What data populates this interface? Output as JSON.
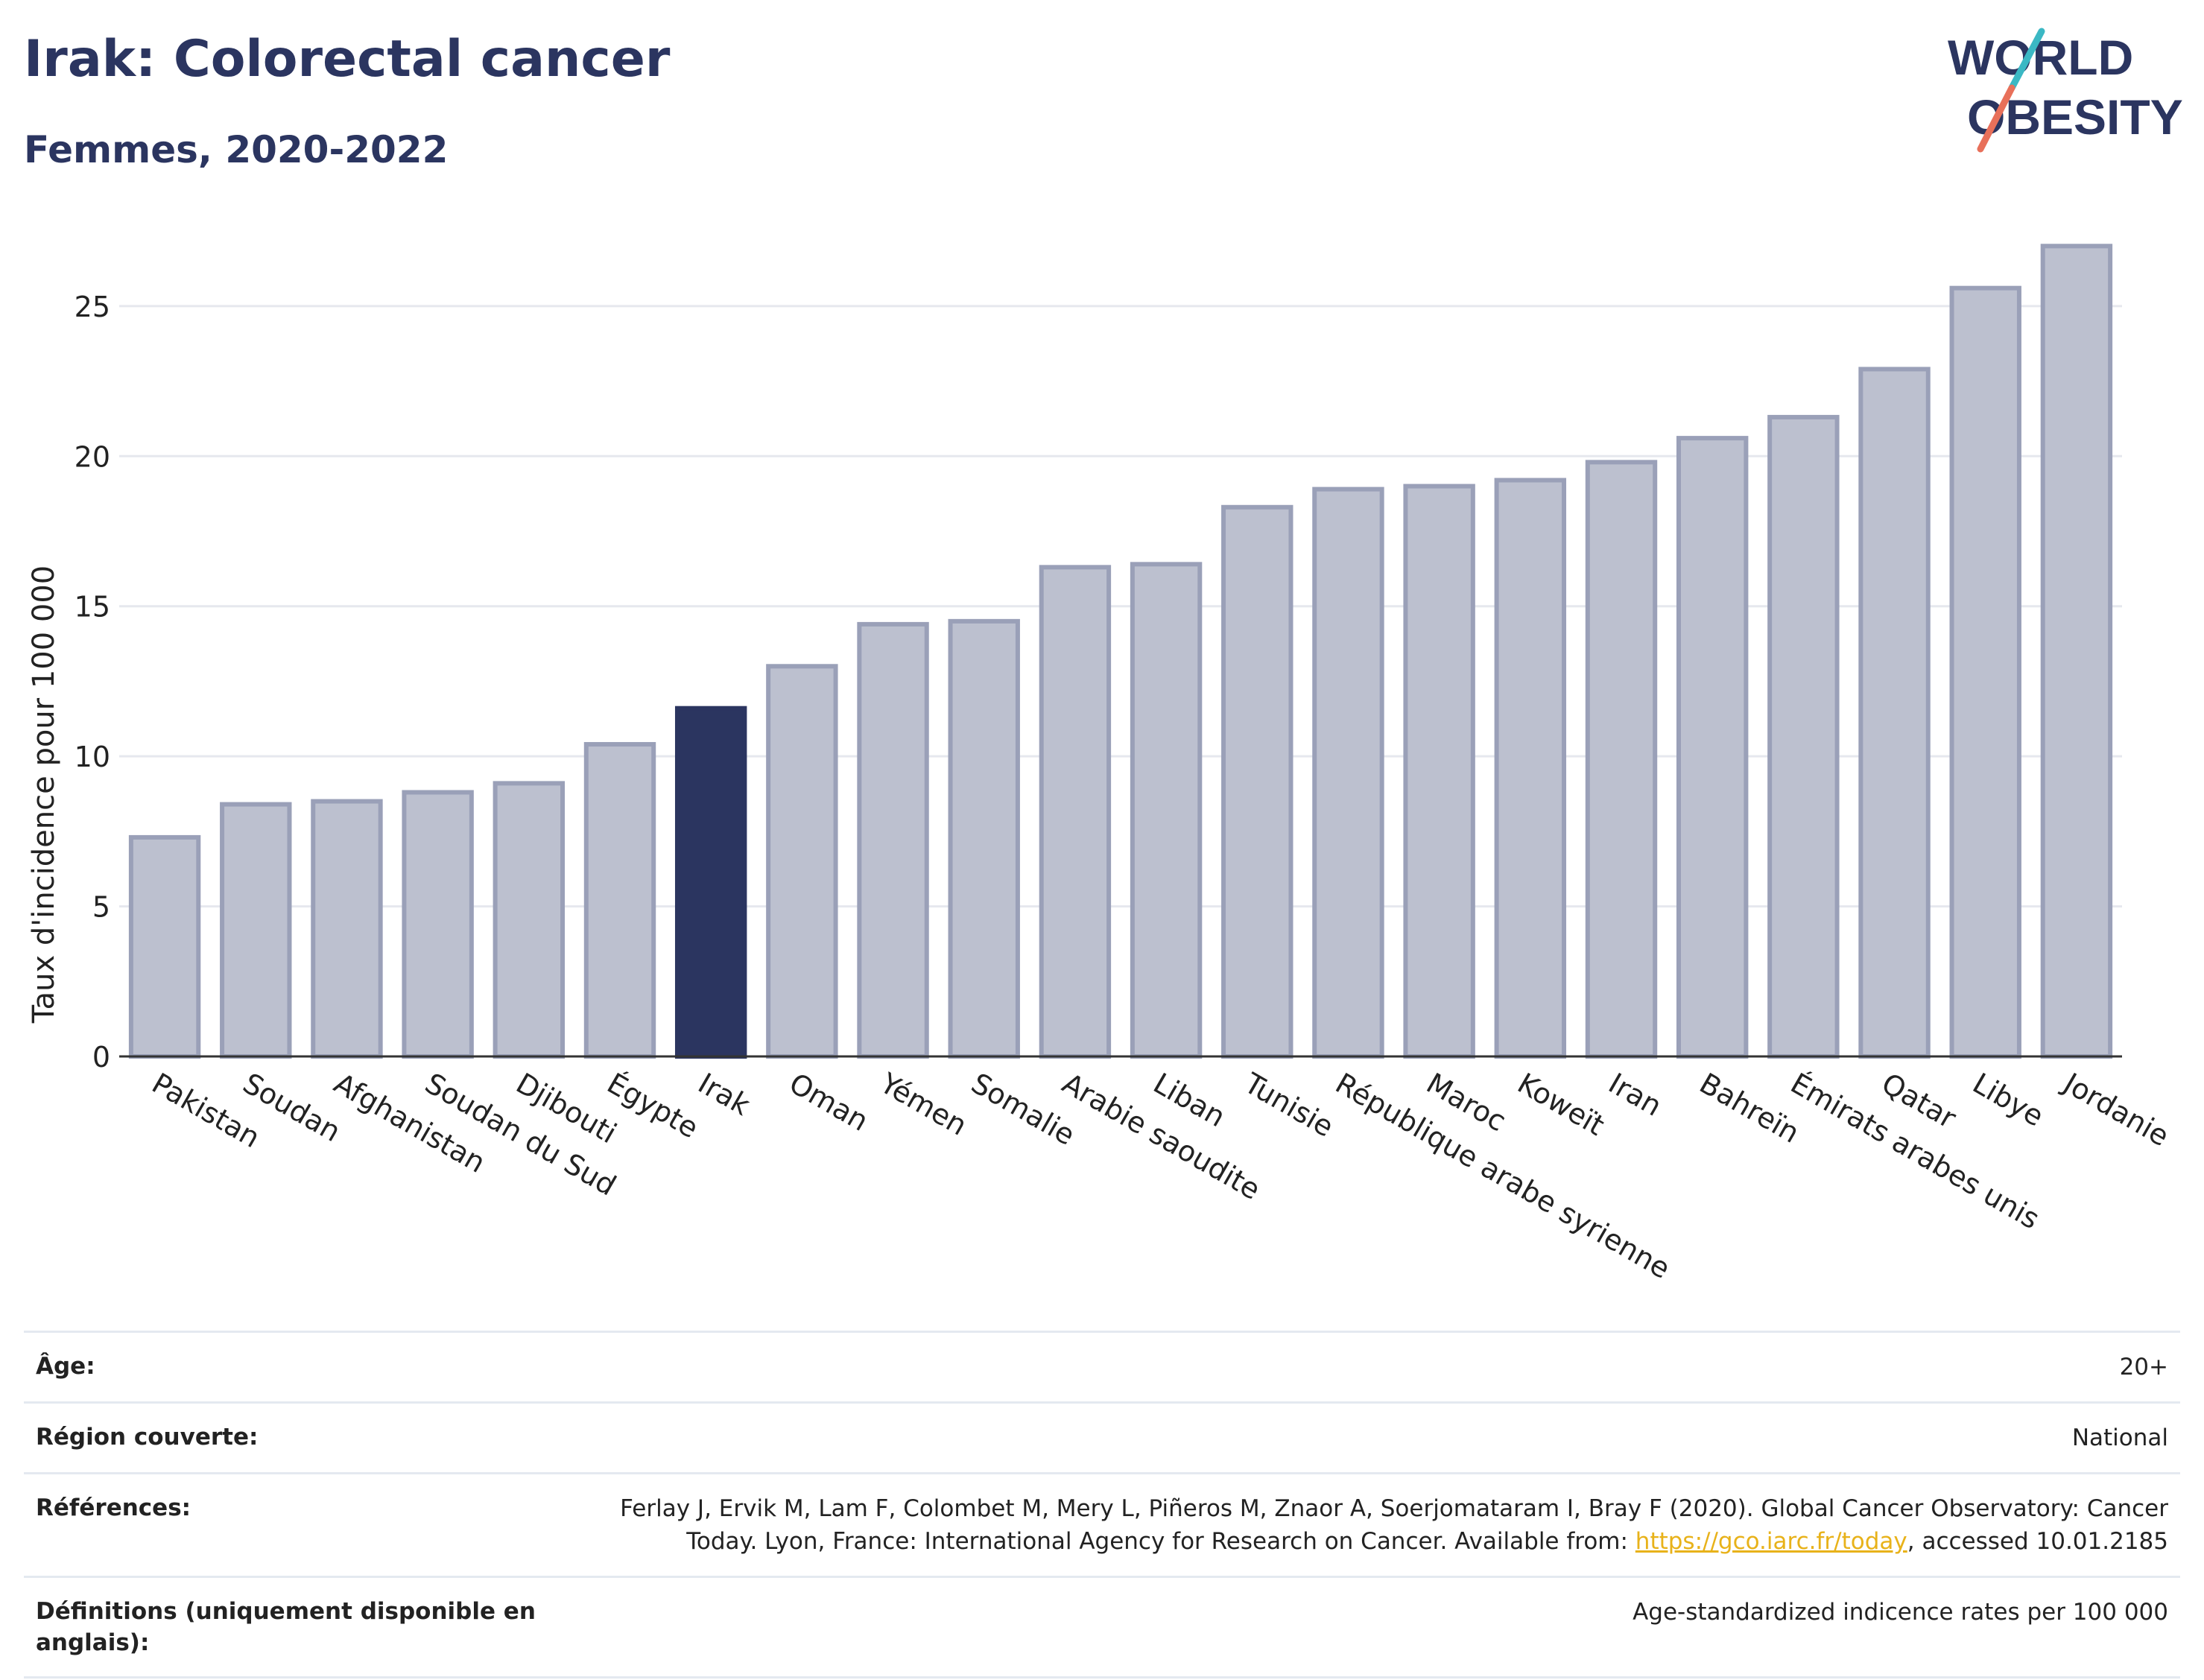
{
  "header": {
    "title": "Irak: Colorectal cancer",
    "subtitle": "Femmes, 2020-2022"
  },
  "logo": {
    "line1": "WORLD",
    "line2": "OBESITY",
    "colors": {
      "text": "#2b3560",
      "slash_top": "#3bb8c4",
      "slash_bottom": "#e8705a"
    }
  },
  "colors": {
    "bar": "#bcc0cf",
    "bar_border": "#9aa0b8",
    "highlight": "#2b3560",
    "grid": "#e6e8ee",
    "axis": "#333333",
    "link": "#e8b21a"
  },
  "chart_data": {
    "type": "bar",
    "ylabel": "Taux d'incidence pour 100 000",
    "ylim": [
      0,
      28
    ],
    "yticks": [
      0,
      5,
      10,
      15,
      20,
      25
    ],
    "grid": true,
    "highlight": "Irak",
    "categories": [
      "Pakistan",
      "Soudan",
      "Afghanistan",
      "Soudan du Sud",
      "Djibouti",
      "Égypte",
      "Irak",
      "Oman",
      "Yémen",
      "Somalie",
      "Arabie saoudite",
      "Liban",
      "Tunisie",
      "République arabe syrienne",
      "Maroc",
      "Koweït",
      "Iran",
      "Bahreïn",
      "Émirats arabes unis",
      "Qatar",
      "Libye",
      "Jordanie"
    ],
    "values": [
      7.3,
      8.4,
      8.5,
      8.8,
      9.1,
      10.4,
      11.6,
      13.0,
      14.4,
      14.5,
      16.3,
      16.4,
      18.3,
      18.9,
      19.0,
      19.2,
      19.8,
      20.6,
      21.3,
      22.9,
      25.6,
      27.0
    ]
  },
  "info_table": {
    "age": {
      "label": "Âge:",
      "value": "20+"
    },
    "region": {
      "label": "Région couverte:",
      "value": "National"
    },
    "references": {
      "label": "Références:",
      "value_prefix": "Ferlay J, Ervik M, Lam F, Colombet M, Mery L, Piñeros M, Znaor A, Soerjomataram I, Bray F (2020). Global Cancer Observatory: Cancer Today. Lyon, France: International Agency for Research on Cancer. Available from: ",
      "link": "https://gco.iarc.fr/today",
      "value_suffix": ", accessed 10.01.2185"
    },
    "definitions": {
      "label": "Définitions (uniquement disponible en anglais):",
      "value": "Age-standardized indicence rates per 100 000"
    }
  }
}
